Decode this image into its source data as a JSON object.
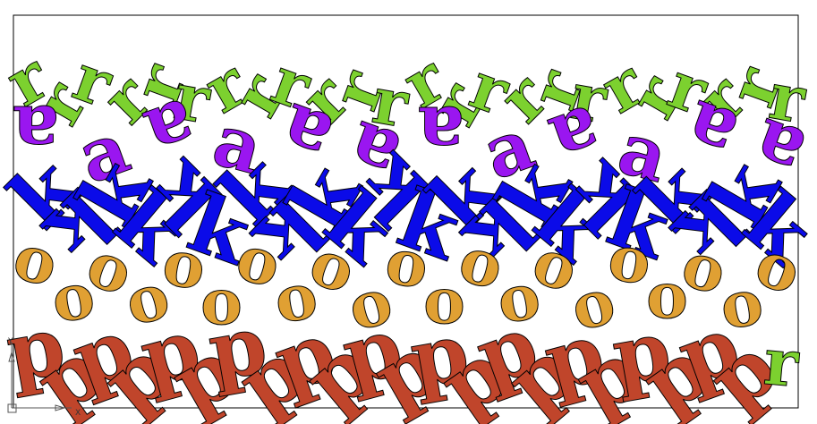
{
  "drawing": {
    "rows": [
      {
        "name": "row-r",
        "letter": "r",
        "color": "#7cd12f",
        "count": 24
      },
      {
        "name": "row-a",
        "letter": "a",
        "color": "#9a16f0",
        "count": 12
      },
      {
        "name": "row-k",
        "letter": "k",
        "color": "#0b0be8",
        "count": 22
      },
      {
        "name": "row-o",
        "letter": "o",
        "color": "#e0a033",
        "count": 21
      },
      {
        "name": "row-p",
        "letter": "p",
        "color": "#c0452b",
        "count": 22
      }
    ],
    "extra_letter": {
      "letter": "r",
      "color": "#7cd12f"
    },
    "ucs": {
      "x_label": "X",
      "y_label": "Y"
    }
  }
}
